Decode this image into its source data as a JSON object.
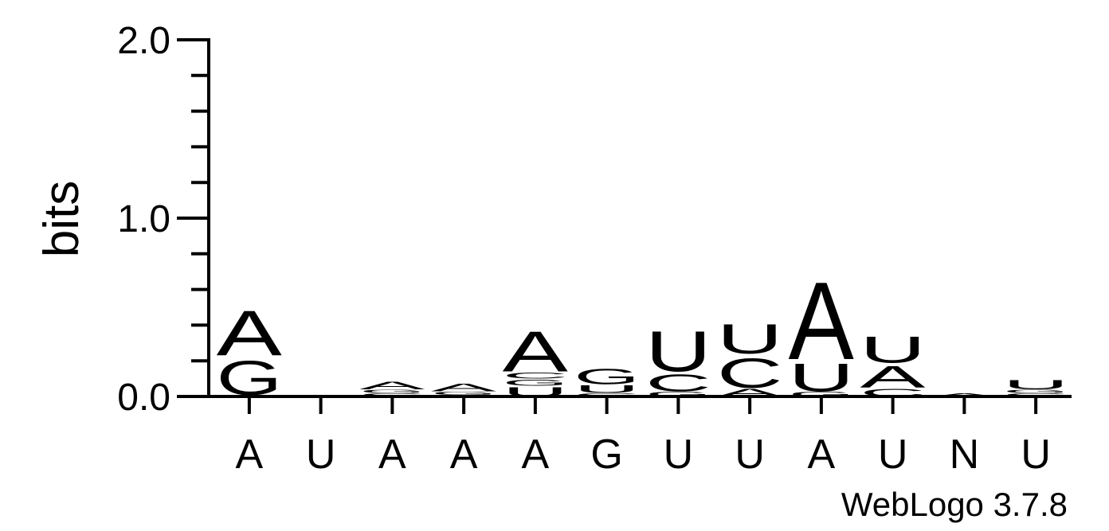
{
  "chart_data": {
    "type": "logo",
    "ylabel": "bits",
    "footer": "WebLogo 3.7.8",
    "categories": [
      "A",
      "U",
      "A",
      "A",
      "A",
      "G",
      "U",
      "U",
      "A",
      "U",
      "N",
      "U"
    ],
    "stacks": [
      [
        {
          "letter": "C",
          "bits": 0.01
        },
        {
          "letter": "G",
          "bits": 0.22
        },
        {
          "letter": "A",
          "bits": 0.29
        }
      ],
      [],
      [
        {
          "letter": "C",
          "bits": 0.02
        },
        {
          "letter": "G",
          "bits": 0.02
        },
        {
          "letter": "A",
          "bits": 0.05
        }
      ],
      [
        {
          "letter": "C",
          "bits": 0.01
        },
        {
          "letter": "G",
          "bits": 0.02
        },
        {
          "letter": "A",
          "bits": 0.05
        }
      ],
      [
        {
          "letter": "U",
          "bits": 0.06
        },
        {
          "letter": "G",
          "bits": 0.04
        },
        {
          "letter": "C",
          "bits": 0.04
        },
        {
          "letter": "A",
          "bits": 0.26
        }
      ],
      [
        {
          "letter": "C",
          "bits": 0.02
        },
        {
          "letter": "U",
          "bits": 0.05
        },
        {
          "letter": "G",
          "bits": 0.1
        }
      ],
      [
        {
          "letter": "G",
          "bits": 0.03
        },
        {
          "letter": "C",
          "bits": 0.11
        },
        {
          "letter": "U",
          "bits": 0.26
        }
      ],
      [
        {
          "letter": "A",
          "bits": 0.05
        },
        {
          "letter": "C",
          "bits": 0.19
        },
        {
          "letter": "U",
          "bits": 0.19
        }
      ],
      [
        {
          "letter": "G",
          "bits": 0.03
        },
        {
          "letter": "U",
          "bits": 0.18
        },
        {
          "letter": "A",
          "bits": 0.5
        }
      ],
      [
        {
          "letter": "C",
          "bits": 0.05
        },
        {
          "letter": "A",
          "bits": 0.14
        },
        {
          "letter": "U",
          "bits": 0.17
        }
      ],
      [
        {
          "letter": "A",
          "bits": 0.02
        }
      ],
      [
        {
          "letter": "C",
          "bits": 0.02
        },
        {
          "letter": "G",
          "bits": 0.02
        },
        {
          "letter": "U",
          "bits": 0.06
        }
      ]
    ],
    "colors": {
      "A": "#ff8c00",
      "U": "#ff8c00",
      "G": "#0000ff",
      "C": "#0000ff"
    },
    "ylim": [
      0,
      2
    ],
    "yticks": [
      {
        "value": 0,
        "label": "0.0"
      },
      {
        "value": 1,
        "label": "1.0"
      },
      {
        "value": 2,
        "label": "2.0"
      }
    ],
    "yminorticks": [
      0.2,
      0.4,
      0.6,
      0.8,
      1.2,
      1.4,
      1.6,
      1.8
    ]
  }
}
